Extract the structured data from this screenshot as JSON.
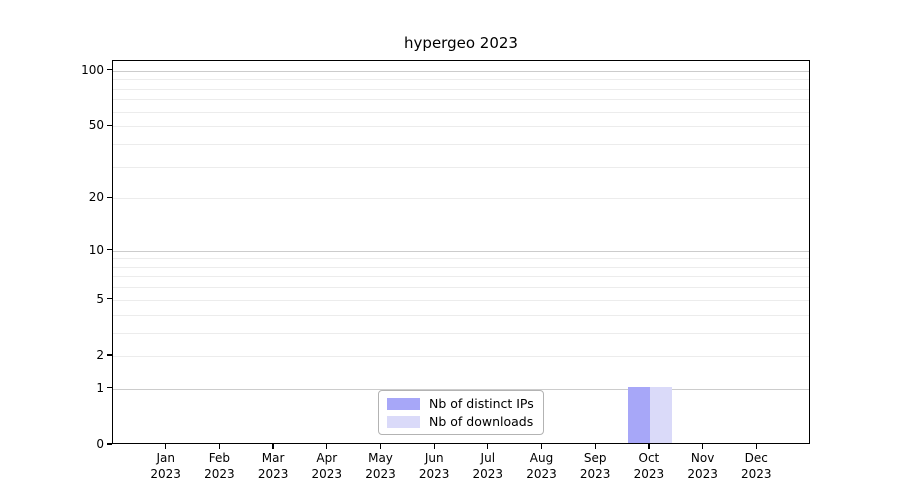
{
  "chart_data": {
    "type": "bar",
    "title": "hypergeo 2023",
    "categories": [
      "Jan 2023",
      "Feb 2023",
      "Mar 2023",
      "Apr 2023",
      "May 2023",
      "Jun 2023",
      "Jul 2023",
      "Aug 2023",
      "Sep 2023",
      "Oct 2023",
      "Nov 2023",
      "Dec 2023"
    ],
    "series": [
      {
        "name": "Nb of distinct IPs",
        "color": "#a7a7f8",
        "values": [
          0,
          0,
          0,
          0,
          0,
          0,
          0,
          0,
          0,
          1,
          0,
          0
        ]
      },
      {
        "name": "Nb of downloads",
        "color": "#dadaf9",
        "values": [
          0,
          0,
          0,
          0,
          0,
          0,
          0,
          0,
          0,
          1,
          0,
          0
        ]
      }
    ],
    "xlabel": "",
    "ylabel": "",
    "y_scale": "log1p",
    "y_ticks": [
      0,
      1,
      2,
      5,
      10,
      20,
      50,
      100
    ],
    "y_major_gridlines": [
      1,
      10,
      100
    ],
    "y_minor_gridlines": [
      2,
      3,
      4,
      5,
      6,
      7,
      8,
      9,
      20,
      30,
      40,
      50,
      60,
      70,
      80,
      90
    ],
    "ylim": [
      0,
      113
    ],
    "grid": "horizontal",
    "legend": {
      "position": "bottom-center-inside",
      "entries": [
        "Nb of distinct IPs",
        "Nb of downloads"
      ]
    }
  },
  "colors": {
    "axis": "#000000",
    "grid_major": "#cccccc",
    "grid_minor": "#ececec",
    "legend_border": "#b3b3b3",
    "background": "#ffffff"
  }
}
